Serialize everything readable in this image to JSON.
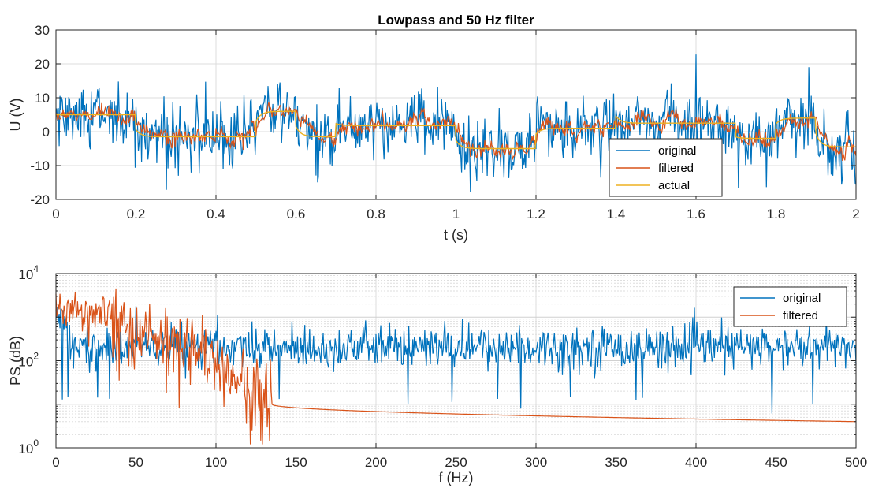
{
  "colors": {
    "original": "#0072BD",
    "filtered": "#D95319",
    "actual": "#EDB120",
    "grid": "#dcdcdc",
    "axis": "#262626"
  },
  "chart_data": [
    {
      "type": "line",
      "title": "Lowpass and 50 Hz filter",
      "xlabel": "t (s)",
      "ylabel": "U (V)",
      "xlim": [
        0,
        2
      ],
      "ylim": [
        -20,
        30
      ],
      "xticks": [
        "0",
        "0.2",
        "0.4",
        "0.6",
        "0.8",
        "1",
        "1.2",
        "1.4",
        "1.6",
        "1.8",
        "2"
      ],
      "yticks": [
        "-20",
        "-10",
        "0",
        "10",
        "20",
        "30"
      ],
      "grid": true,
      "legend": "bottom-right",
      "actual_levels": {
        "t": [
          0,
          0.2,
          0.5,
          0.6,
          0.7,
          1.0,
          1.2,
          1.4,
          1.7,
          1.8,
          1.9
        ],
        "level": [
          5,
          -1.5,
          6,
          -1.5,
          1.8,
          -5,
          1,
          2.5,
          -2,
          4,
          -4.5
        ]
      },
      "series": [
        {
          "name": "original",
          "noise_std": 4.5
        },
        {
          "name": "filtered",
          "noise_std": 1.5
        },
        {
          "name": "actual"
        }
      ]
    },
    {
      "type": "line",
      "title": "",
      "xlabel": "f (Hz)",
      "ylabel": "PS (dB)",
      "xlim": [
        0,
        500
      ],
      "ylim": [
        1,
        10000
      ],
      "yscale": "log",
      "xticks": [
        "0",
        "50",
        "100",
        "150",
        "200",
        "250",
        "300",
        "350",
        "400",
        "450",
        "500"
      ],
      "yticks": [
        {
          "base": "10",
          "exp": "0"
        },
        {
          "base": "10",
          "exp": "2"
        },
        {
          "base": "10",
          "exp": "4"
        }
      ],
      "grid": true,
      "legend": "top-right",
      "series": [
        {
          "name": "original",
          "typical_level": 200,
          "peak_at_50Hz": 1800
        },
        {
          "name": "filtered",
          "level_at_0Hz": 1500,
          "level_at_140Hz": 10,
          "level_at_500Hz": 4
        }
      ]
    }
  ]
}
